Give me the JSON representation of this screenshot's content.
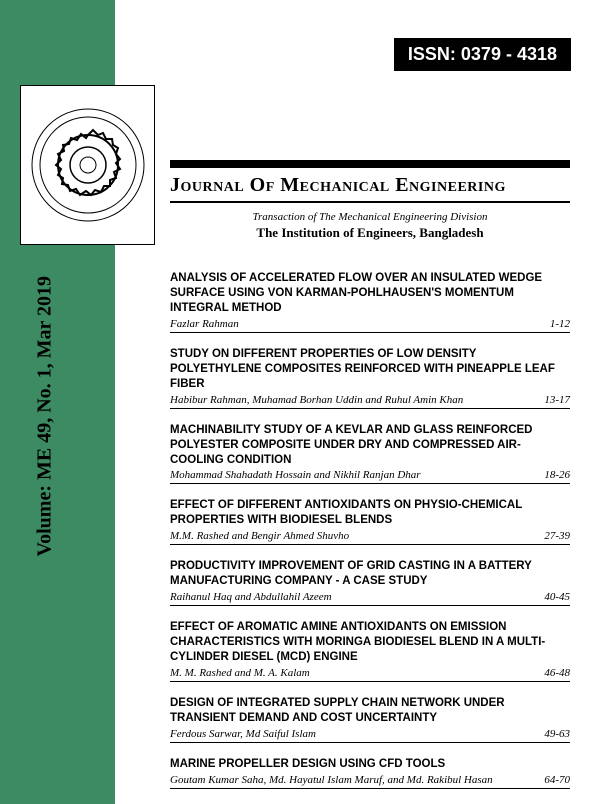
{
  "colors": {
    "green": "#3d8b63",
    "black": "#000000",
    "white": "#ffffff"
  },
  "issn": "ISSN: 0379 - 4318",
  "spine": "Volume: ME 49, No. 1, Mar 2019",
  "journal_title": "Journal Of Mechanical Engineering",
  "subtitle": "Transaction of The Mechanical Engineering Division",
  "institution": "The Institution of Engineers, Bangladesh",
  "articles": [
    {
      "title": "ANALYSIS OF ACCELERATED FLOW OVER AN INSULATED WEDGE SURFACE USING VON KARMAN-POHLHAUSEN'S MOMENTUM INTEGRAL METHOD",
      "authors": "Fazlar Rahman",
      "pages": "1-12"
    },
    {
      "title": "STUDY ON DIFFERENT PROPERTIES OF LOW DENSITY POLYETHYLENE COMPOSITES REINFORCED WITH PINEAPPLE LEAF FIBER",
      "authors": "Habibur Rahman, Muhamad Borhan Uddin and Ruhul Amin Khan",
      "pages": "13-17"
    },
    {
      "title": "MACHINABILITY STUDY OF A KEVLAR AND GLASS REINFORCED POLYESTER COMPOSITE UNDER DRY AND COMPRESSED AIR-COOLING CONDITION",
      "authors": "Mohammad Shahadath Hossain and Nikhil Ranjan Dhar",
      "pages": "18-26"
    },
    {
      "title": "EFFECT OF DIFFERENT ANTIOXIDANTS ON PHYSIO-CHEMICAL PROPERTIES WITH BIODIESEL BLENDS",
      "authors": "M.M. Rashed and Bengir Ahmed Shuvho",
      "pages": "27-39"
    },
    {
      "title": "PRODUCTIVITY IMPROVEMENT OF GRID CASTING IN A BATTERY MANUFACTURING COMPANY - A CASE STUDY",
      "authors": "Raihanul Haq and Abdullahil Azeem",
      "pages": "40-45"
    },
    {
      "title": "EFFECT OF AROMATIC AMINE ANTIOXIDANTS ON EMISSION CHARACTERISTICS WITH MORINGA BIODIESEL BLEND IN A MULTI-CYLINDER DIESEL (MCD) ENGINE",
      "authors": "M. M. Rashed and M. A. Kalam",
      "pages": "46-48"
    },
    {
      "title": "DESIGN OF INTEGRATED SUPPLY CHAIN NETWORK UNDER TRANSIENT DEMAND AND COST UNCERTAINTY",
      "authors": "Ferdous Sarwar, Md Saiful Islam",
      "pages": "49-63"
    },
    {
      "title": "MARINE PROPELLER DESIGN USING CFD TOOLS",
      "authors": "Goutam Kumar Saha, Md. Hayatul Islam Maruf, and Md. Rakibul Hasan",
      "pages": "64-70"
    }
  ]
}
